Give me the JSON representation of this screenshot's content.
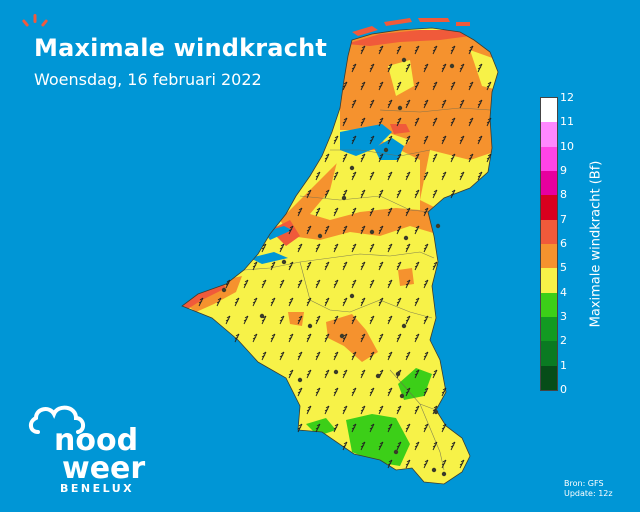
{
  "header": {
    "title": "Maximale windkracht",
    "subtitle": "Woensdag, 16 februari 2022"
  },
  "legend": {
    "title": "Maximale windkracht (Bf)",
    "levels": [
      {
        "value": "12",
        "color": "#ffffff"
      },
      {
        "value": "11",
        "color": "#ffd9ff"
      },
      {
        "value": "10",
        "color": "#ff88ff"
      },
      {
        "value": "9",
        "color": "#ff44e6"
      },
      {
        "value": "8",
        "color": "#e6009e"
      },
      {
        "value": "7",
        "color": "#d9001e"
      },
      {
        "value": "6",
        "color": "#f05a3a"
      },
      {
        "value": "5",
        "color": "#f5922e"
      },
      {
        "value": "4",
        "color": "#f7f248"
      },
      {
        "value": "3",
        "color": "#3ccf18"
      },
      {
        "value": "2",
        "color": "#129a22"
      },
      {
        "value": "1",
        "color": "#0a7a22"
      },
      {
        "value": "0",
        "color": "#064d18"
      }
    ]
  },
  "logo": {
    "line1": "nood",
    "line2": "weer",
    "region": "BENELUX"
  },
  "source": {
    "line1": "Bron: GFS",
    "line2": "Update: 12z"
  },
  "colors": {
    "sea": "#0096d6",
    "bf4": "#f7f248",
    "bf5": "#f5922e",
    "bf6": "#f05a3a",
    "bf3": "#3ccf18",
    "bf2": "#129a22"
  }
}
